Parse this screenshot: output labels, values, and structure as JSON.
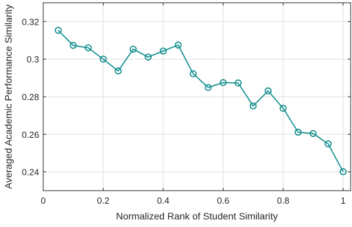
{
  "chart_data": {
    "type": "line",
    "title": "",
    "xlabel": "Normalized Rank of Student Similarity",
    "ylabel": "Averaged Academic Performance Similarity",
    "xlim": [
      0,
      1.025
    ],
    "ylim": [
      0.23,
      0.33
    ],
    "xticks": [
      0,
      0.2,
      0.4,
      0.6,
      0.8,
      1
    ],
    "xtick_labels": [
      "0",
      "0.2",
      "0.4",
      "0.6",
      "0.8",
      "1"
    ],
    "yticks": [
      0.24,
      0.26,
      0.28,
      0.3,
      0.32
    ],
    "ytick_labels": [
      "0.24",
      "0.26",
      "0.28",
      "0.3",
      "0.32"
    ],
    "grid": true,
    "series": [
      {
        "color": "#0e8c8c",
        "marker": "circle",
        "x": [
          0.05,
          0.1,
          0.15,
          0.2,
          0.25,
          0.3,
          0.35,
          0.4,
          0.45,
          0.5,
          0.55,
          0.6,
          0.65,
          0.7,
          0.75,
          0.8,
          0.85,
          0.9,
          0.95,
          1.0
        ],
        "y": [
          0.3153,
          0.3073,
          0.306,
          0.3,
          0.2937,
          0.3053,
          0.3011,
          0.3043,
          0.3075,
          0.2922,
          0.2849,
          0.2875,
          0.2873,
          0.2751,
          0.2831,
          0.2738,
          0.2611,
          0.2604,
          0.2549,
          0.2401
        ]
      }
    ]
  }
}
